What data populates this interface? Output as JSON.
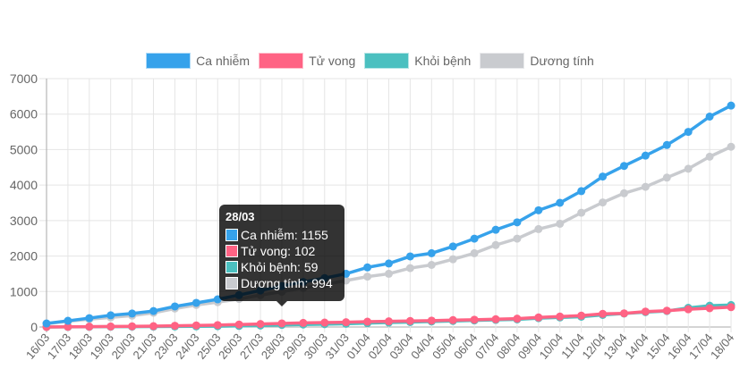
{
  "chart_data": {
    "type": "line",
    "title": "",
    "xlabel": "",
    "ylabel": "",
    "ylim": [
      0,
      7000
    ],
    "yticks": [
      "0",
      "1000",
      "2000",
      "3000",
      "4000",
      "5000",
      "6000",
      "7000"
    ],
    "grid": true,
    "legend_position": "top",
    "categories": [
      "16/03",
      "17/03",
      "18/03",
      "19/03",
      "20/03",
      "21/03",
      "23/03",
      "24/03",
      "25/03",
      "26/03",
      "27/03",
      "28/03",
      "29/03",
      "30/03",
      "31/03",
      "01/04",
      "02/04",
      "03/04",
      "04/04",
      "05/04",
      "06/04",
      "07/04",
      "08/04",
      "09/04",
      "10/04",
      "11/04",
      "12/04",
      "13/04",
      "14/04",
      "15/04",
      "16/04",
      "17/04",
      "18/04"
    ],
    "series": [
      {
        "name": "Ca nhiễm",
        "color": "#36a2eb",
        "values": [
          100,
          175,
          250,
          330,
          380,
          450,
          580,
          680,
          780,
          900,
          1030,
          1155,
          1270,
          1380,
          1500,
          1680,
          1790,
          1990,
          2080,
          2270,
          2490,
          2740,
          2950,
          3290,
          3500,
          3830,
          4240,
          4540,
          4830,
          5130,
          5500,
          5930,
          6240
        ]
      },
      {
        "name": "Tử vong",
        "color": "#ff6384",
        "values": [
          0,
          5,
          10,
          15,
          20,
          25,
          35,
          45,
          55,
          70,
          85,
          102,
          115,
          125,
          135,
          150,
          160,
          170,
          180,
          195,
          205,
          220,
          235,
          270,
          295,
          320,
          370,
          385,
          435,
          460,
          500,
          530,
          560
        ]
      },
      {
        "name": "Khỏi bệnh",
        "color": "#4bc0c0",
        "values": [
          0,
          3,
          5,
          8,
          10,
          12,
          15,
          18,
          22,
          30,
          42,
          59,
          70,
          80,
          90,
          110,
          125,
          140,
          155,
          170,
          185,
          200,
          215,
          250,
          270,
          290,
          340,
          380,
          420,
          450,
          540,
          600,
          620
        ]
      },
      {
        "name": "Dương tính",
        "color": "#c9cbcf",
        "values": [
          90,
          160,
          220,
          270,
          320,
          400,
          520,
          620,
          700,
          790,
          900,
          994,
          1100,
          1200,
          1310,
          1420,
          1500,
          1660,
          1750,
          1910,
          2080,
          2310,
          2490,
          2760,
          2910,
          3220,
          3510,
          3770,
          3950,
          4210,
          4460,
          4800,
          5080
        ]
      }
    ]
  },
  "tooltip": {
    "title": "28/03",
    "rows": [
      "Ca nhiễm: 1155",
      "Tử vong: 102",
      "Khỏi bệnh: 59",
      "Dương tính: 994"
    ]
  }
}
